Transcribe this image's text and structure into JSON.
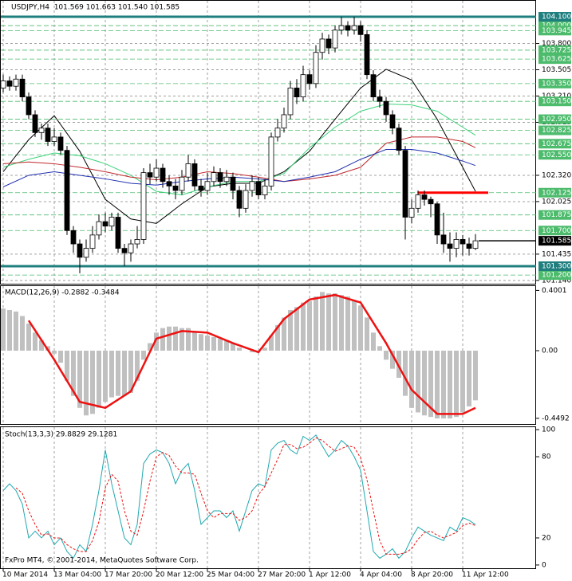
{
  "chart_data": [
    {
      "type": "candlestick",
      "title": "USDJPY,H4  101.569 101.663 101.540 101.585",
      "categories": [
        "10 Mar 2014",
        null,
        null,
        null,
        null,
        null,
        null,
        null,
        "13 Mar 04:00",
        null,
        null,
        null,
        null,
        null,
        null,
        null,
        "17 Mar 20:00",
        null,
        null,
        null,
        null,
        null,
        null,
        null,
        "20 Mar 12:00",
        null,
        null,
        null,
        null,
        null,
        null,
        null,
        "25 Mar 04:00",
        null,
        null,
        null,
        null,
        null,
        null,
        null,
        "27 Mar 20:00",
        null,
        null,
        null,
        null,
        null,
        null,
        null,
        "1 Apr 12:00",
        null,
        null,
        null,
        null,
        null,
        null,
        null,
        "4 Apr 04:00",
        null,
        null,
        null,
        null,
        null,
        null,
        null,
        "8 Apr 20:00",
        null,
        null,
        null,
        null,
        null,
        null,
        null,
        "11 Apr 12:00",
        null,
        null
      ],
      "open": [
        103.3,
        103.38,
        103.32,
        103.4,
        103.2,
        103.0,
        102.8,
        102.85,
        102.7,
        102.75,
        102.6,
        101.7,
        101.55,
        101.4,
        101.5,
        101.65,
        101.8,
        101.75,
        101.85,
        101.5,
        101.45,
        101.55,
        101.6,
        102.35,
        102.3,
        102.4,
        102.25,
        102.2,
        102.15,
        102.3,
        102.45,
        102.2,
        102.15,
        102.25,
        102.35,
        102.25,
        102.3,
        102.15,
        101.95,
        102.15,
        102.25,
        102.1,
        102.2,
        102.75,
        102.85,
        103.0,
        103.3,
        103.2,
        103.45,
        103.35,
        103.7,
        103.85,
        103.75,
        103.95,
        104.0,
        103.95,
        104.0,
        103.9,
        103.45,
        103.2,
        103.15,
        103.0,
        102.85,
        102.6,
        101.85,
        101.95,
        102.1,
        102.05,
        102.0,
        101.65,
        101.55,
        101.5,
        101.6,
        101.55,
        101.5
      ],
      "high": [
        103.45,
        103.43,
        103.45,
        103.45,
        103.25,
        103.05,
        102.9,
        102.9,
        102.85,
        102.8,
        102.65,
        101.75,
        101.6,
        101.6,
        101.75,
        101.88,
        101.9,
        101.9,
        101.9,
        101.55,
        101.6,
        101.75,
        102.4,
        102.45,
        102.5,
        102.45,
        102.32,
        102.28,
        102.38,
        102.55,
        102.5,
        102.28,
        102.35,
        102.42,
        102.4,
        102.38,
        102.35,
        102.2,
        102.22,
        102.32,
        102.3,
        102.28,
        102.8,
        102.95,
        103.08,
        103.38,
        103.4,
        103.55,
        103.5,
        103.78,
        103.92,
        103.9,
        104.0,
        104.1,
        104.05,
        104.1,
        104.05,
        103.95,
        103.5,
        103.28,
        103.2,
        103.05,
        102.9,
        102.65,
        102.05,
        102.15,
        102.15,
        102.08,
        102.02,
        101.9,
        101.68,
        101.68,
        101.65,
        101.62,
        101.66
      ],
      "low": [
        103.25,
        103.27,
        103.27,
        103.15,
        102.95,
        102.75,
        102.72,
        102.65,
        102.65,
        102.55,
        101.65,
        101.45,
        101.22,
        101.35,
        101.45,
        101.6,
        101.68,
        101.7,
        101.45,
        101.3,
        101.35,
        101.5,
        101.55,
        102.22,
        102.25,
        102.18,
        102.1,
        102.05,
        102.1,
        102.25,
        102.15,
        102.08,
        102.1,
        102.2,
        102.18,
        102.2,
        102.05,
        101.85,
        101.9,
        102.08,
        102.05,
        102.05,
        102.15,
        102.7,
        102.8,
        102.95,
        103.12,
        103.15,
        103.28,
        103.3,
        103.62,
        103.68,
        103.7,
        103.9,
        103.88,
        103.9,
        103.82,
        103.4,
        103.15,
        103.08,
        102.92,
        102.78,
        102.55,
        101.6,
        101.78,
        101.9,
        101.98,
        101.85,
        101.55,
        101.45,
        101.35,
        101.4,
        101.42,
        101.42,
        101.48
      ],
      "close": [
        103.38,
        103.32,
        103.4,
        103.2,
        103.0,
        102.8,
        102.85,
        102.7,
        102.75,
        102.6,
        101.7,
        101.55,
        101.4,
        101.5,
        101.65,
        101.8,
        101.75,
        101.85,
        101.5,
        101.45,
        101.55,
        101.6,
        102.35,
        102.3,
        102.4,
        102.25,
        102.2,
        102.15,
        102.3,
        102.45,
        102.2,
        102.15,
        102.25,
        102.35,
        102.25,
        102.3,
        102.15,
        101.95,
        102.15,
        102.25,
        102.1,
        102.2,
        102.75,
        102.85,
        103.0,
        103.3,
        103.2,
        103.45,
        103.35,
        103.7,
        103.85,
        103.75,
        103.95,
        104.0,
        103.95,
        104.0,
        103.9,
        103.45,
        103.2,
        103.15,
        103.0,
        102.85,
        102.6,
        101.85,
        101.95,
        102.1,
        102.05,
        102.0,
        101.65,
        101.55,
        101.5,
        101.6,
        101.55,
        101.5,
        101.585
      ],
      "up_color": "#ffffff",
      "down_color": "#000000",
      "series": [
        {
          "color": "#000000",
          "x": [
            0,
            4,
            8,
            12,
            16,
            20,
            24,
            28,
            32,
            36,
            40,
            44,
            48,
            52,
            56,
            60,
            64,
            68,
            72,
            74
          ],
          "values": [
            102.36,
            102.72,
            102.99,
            102.59,
            102.05,
            101.83,
            101.78,
            102.0,
            102.19,
            102.23,
            102.23,
            102.36,
            102.59,
            102.95,
            103.3,
            103.51,
            103.39,
            102.95,
            102.41,
            102.14
          ]
        },
        {
          "color": "#3cd27a",
          "x": [
            0,
            4,
            8,
            12,
            16,
            20,
            24,
            28,
            32,
            36,
            40,
            44,
            48,
            52,
            56,
            60,
            64,
            68,
            72,
            74
          ],
          "values": [
            102.41,
            102.5,
            102.57,
            102.54,
            102.45,
            102.32,
            102.14,
            102.1,
            102.19,
            102.25,
            102.25,
            102.34,
            102.63,
            102.86,
            103.04,
            103.12,
            103.11,
            103.04,
            102.86,
            102.77
          ]
        },
        {
          "color": "#c0282c",
          "x": [
            0,
            4,
            8,
            12,
            16,
            20,
            24,
            28,
            32,
            36,
            40,
            44,
            48,
            52,
            56,
            60,
            64,
            68,
            72,
            74
          ],
          "values": [
            102.45,
            102.47,
            102.45,
            102.41,
            102.36,
            102.3,
            102.27,
            102.3,
            102.36,
            102.34,
            102.3,
            102.25,
            102.28,
            102.32,
            102.41,
            102.68,
            102.75,
            102.75,
            102.7,
            102.63
          ]
        },
        {
          "color": "#2030b0",
          "x": [
            0,
            4,
            8,
            12,
            16,
            20,
            24,
            28,
            32,
            36,
            40,
            44,
            48,
            52,
            56,
            60,
            64,
            68,
            72,
            74
          ],
          "values": [
            102.19,
            102.32,
            102.36,
            102.32,
            102.28,
            102.23,
            102.21,
            102.25,
            102.28,
            102.3,
            102.28,
            102.25,
            102.3,
            102.36,
            102.5,
            102.61,
            102.61,
            102.57,
            102.48,
            102.43
          ]
        },
        {
          "color": "#ff0000",
          "width": 3,
          "x": [
            65,
            76
          ],
          "values": [
            102.125,
            102.125
          ]
        }
      ],
      "ylim": [
        101.103,
        104.288
      ],
      "yticks": [
        {
          "value": 103.8,
          "label": "103.800"
        },
        {
          "value": 103.505,
          "label": "103.505"
        },
        {
          "value": 103.21,
          "label": "103.210"
        },
        {
          "value": 102.915,
          "label": "102.915"
        },
        {
          "value": 102.32,
          "label": "102.320"
        },
        {
          "value": 102.025,
          "label": "102.025"
        },
        {
          "value": 101.435,
          "label": "101.435"
        },
        {
          "value": 101.14,
          "label": "101.140"
        }
      ],
      "levels": [
        {
          "value": 104.0,
          "label": "104.000"
        },
        {
          "value": 103.945,
          "label": "103.945"
        },
        {
          "value": 103.725,
          "label": "103.725"
        },
        {
          "value": 103.625,
          "label": "103.625"
        },
        {
          "value": 103.35,
          "label": "103.350"
        },
        {
          "value": 103.15,
          "label": "103.150"
        },
        {
          "value": 102.95,
          "label": "102.950"
        },
        {
          "value": 102.825,
          "label": "102.825"
        },
        {
          "value": 102.675,
          "label": "102.675"
        },
        {
          "value": 102.55,
          "label": "102.550"
        },
        {
          "value": 102.125,
          "label": "102.125"
        },
        {
          "value": 101.875,
          "label": "101.875"
        },
        {
          "value": 101.7,
          "label": "101.700"
        },
        {
          "value": 101.2,
          "label": "101.200"
        }
      ],
      "level_color": "#4cbb6c",
      "key_levels": [
        {
          "value": 104.1,
          "label": "104.100"
        },
        {
          "value": 101.3,
          "label": "101.300"
        }
      ],
      "key_level_color": "#1f7f7f",
      "current_price": {
        "value": 101.585,
        "label": "101.585"
      },
      "grid": true
    },
    {
      "type": "bar",
      "title": "MACD(12,26,9) -0.2882 -0.3484",
      "values": [
        0.28,
        0.27,
        0.26,
        0.23,
        0.18,
        0.12,
        0.07,
        0.03,
        -0.02,
        -0.08,
        -0.2,
        -0.3,
        -0.38,
        -0.43,
        -0.42,
        -0.38,
        -0.34,
        -0.31,
        -0.3,
        -0.3,
        -0.28,
        -0.2,
        -0.06,
        0.05,
        0.12,
        0.15,
        0.16,
        0.16,
        0.15,
        0.15,
        0.13,
        0.11,
        0.1,
        0.09,
        0.08,
        0.07,
        0.05,
        0.02,
        0.0,
        -0.01,
        0.0,
        0.02,
        0.1,
        0.17,
        0.22,
        0.27,
        0.29,
        0.32,
        0.33,
        0.36,
        0.39,
        0.38,
        0.38,
        0.37,
        0.36,
        0.33,
        0.3,
        0.22,
        0.12,
        0.03,
        -0.06,
        -0.12,
        -0.18,
        -0.3,
        -0.38,
        -0.41,
        -0.43,
        -0.44,
        -0.45,
        -0.45,
        -0.45,
        -0.44,
        -0.41,
        -0.37,
        -0.33
      ],
      "color": "#c0c0c0",
      "series": [
        {
          "color": "#ee1111",
          "width": 2.5,
          "x": [
            0,
            4,
            8,
            12,
            16,
            20,
            24,
            28,
            32,
            36,
            40,
            44,
            48,
            52,
            56,
            60,
            64,
            68,
            72,
            74
          ],
          "values": [
            null,
            0.2,
            -0.06,
            -0.34,
            -0.38,
            -0.27,
            0.08,
            0.13,
            0.12,
            0.05,
            -0.01,
            0.21,
            0.34,
            0.37,
            0.32,
            0.05,
            -0.26,
            -0.42,
            -0.42,
            -0.38
          ]
        }
      ],
      "ylim": [
        -0.487,
        0.434
      ],
      "yticks": [
        0.4001,
        {
          "value": 0,
          "label": "0.00"
        },
        -0.4492
      ]
    },
    {
      "type": "line",
      "title": "Stoch(13,3,3) 29.8829 29.1281",
      "series": [
        {
          "color": "#20a8b0",
          "values": [
            55,
            60,
            55,
            45,
            20,
            25,
            20,
            25,
            15,
            20,
            10,
            5,
            15,
            10,
            30,
            55,
            85,
            60,
            40,
            20,
            15,
            30,
            75,
            82,
            85,
            83,
            75,
            60,
            70,
            75,
            55,
            30,
            35,
            40,
            40,
            35,
            40,
            25,
            40,
            55,
            60,
            58,
            85,
            90,
            92,
            85,
            82,
            95,
            92,
            96,
            88,
            80,
            85,
            92,
            88,
            80,
            70,
            40,
            10,
            5,
            8,
            12,
            5,
            10,
            20,
            28,
            25,
            22,
            20,
            18,
            28,
            25,
            35,
            33,
            29.8829
          ]
        },
        {
          "color": "#ee1111",
          "dash": true,
          "values": [
            null,
            null,
            57,
            53,
            40,
            30,
            22,
            23,
            20,
            20,
            15,
            12,
            10,
            10,
            18,
            32,
            57,
            67,
            62,
            40,
            25,
            22,
            40,
            62,
            80,
            83,
            81,
            73,
            68,
            68,
            67,
            53,
            40,
            35,
            38,
            38,
            38,
            33,
            35,
            40,
            52,
            58,
            68,
            78,
            89,
            89,
            86,
            87,
            90,
            94,
            92,
            88,
            84,
            86,
            88,
            87,
            79,
            63,
            40,
            18,
            8,
            8,
            8,
            9,
            12,
            19,
            24,
            25,
            22,
            20,
            22,
            24,
            29,
            31,
            29.1281
          ]
        }
      ],
      "ylim": [
        -2.4,
        102.4
      ],
      "yticks": [
        100,
        80,
        20,
        0
      ]
    }
  ],
  "footer": "FxPro MT4, © 2001-2014, MetaQuotes Software Corp."
}
